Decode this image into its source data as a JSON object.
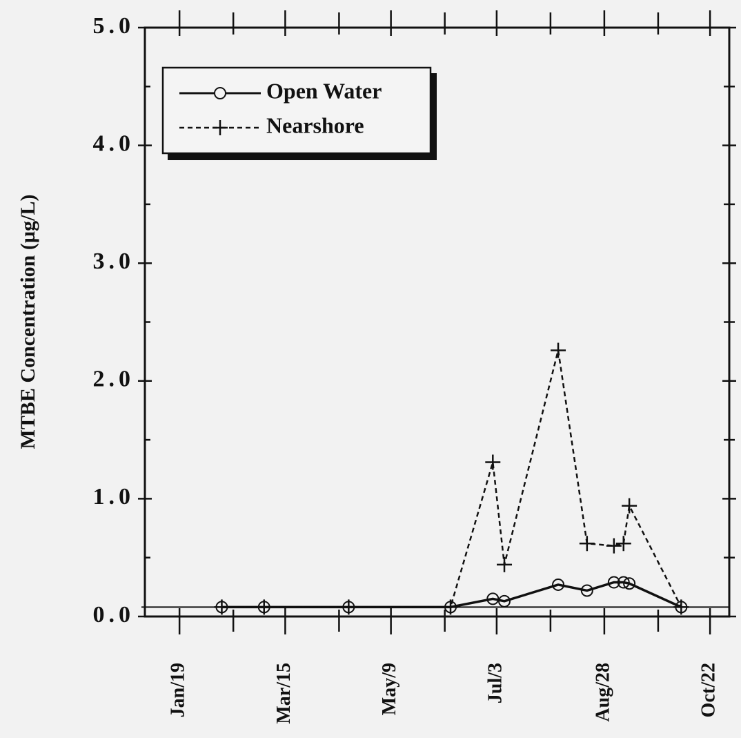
{
  "chart_data": {
    "type": "line",
    "ylabel": "MTBE Concentration (µg/L)",
    "x": [
      41,
      63,
      107,
      160,
      182,
      188,
      216,
      231,
      245,
      250,
      253,
      280
    ],
    "series": [
      {
        "name": "Open Water",
        "color": "#111111",
        "dash": false,
        "marker": "circle",
        "values": [
          0.08,
          0.08,
          0.08,
          0.08,
          0.15,
          0.13,
          0.27,
          0.22,
          0.29,
          0.29,
          0.28,
          0.08
        ]
      },
      {
        "name": "Nearshore",
        "color": "#111111",
        "dash": true,
        "marker": "plus",
        "values": [
          0.08,
          0.08,
          0.08,
          0.08,
          1.31,
          0.44,
          2.26,
          0.62,
          0.6,
          0.62,
          0.94,
          0.08
        ]
      }
    ],
    "hlines": [
      0.08
    ],
    "xlim": [
      1,
      305
    ],
    "xticks": [
      {
        "value": 19,
        "label": "Jan/19"
      },
      {
        "value": 74,
        "label": "Mar/15"
      },
      {
        "value": 129,
        "label": "May/9"
      },
      {
        "value": 184,
        "label": "Jul/3"
      },
      {
        "value": 240,
        "label": "Aug/28"
      },
      {
        "value": 295,
        "label": "Oct/22"
      }
    ],
    "xminorticks": [
      47,
      102,
      157,
      212,
      268
    ],
    "ylim": [
      0,
      5
    ],
    "yticks": [
      {
        "value": 0,
        "label": "0.0"
      },
      {
        "value": 1,
        "label": "1.0"
      },
      {
        "value": 2,
        "label": "2.0"
      },
      {
        "value": 3,
        "label": "3.0"
      },
      {
        "value": 4,
        "label": "4.0"
      },
      {
        "value": 5,
        "label": "5.0"
      }
    ],
    "yminorticks": [
      0.5,
      1.5,
      2.5,
      3.5,
      4.5
    ],
    "legend": "upper left"
  }
}
